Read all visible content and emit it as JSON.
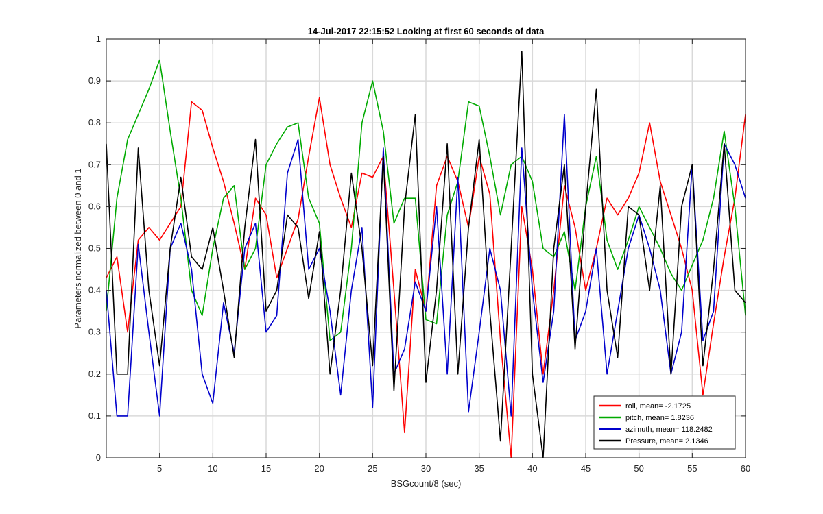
{
  "chart_data": {
    "type": "line",
    "title": "14-Jul-2017 22:15:52 Looking at first 60 seconds of data",
    "xlabel": "BSGcount/8 (sec)",
    "ylabel": "Parameters normalized between 0 and 1",
    "xlim": [
      0,
      60
    ],
    "ylim": [
      0,
      1
    ],
    "xticks": [
      5,
      10,
      15,
      20,
      25,
      30,
      35,
      40,
      45,
      50,
      55,
      60
    ],
    "yticks": [
      0,
      0.1,
      0.2,
      0.3,
      0.4,
      0.5,
      0.6,
      0.7,
      0.8,
      0.9,
      1
    ],
    "grid": true,
    "legend_position": "bottom-right",
    "series": [
      {
        "name": "roll, mean= -2.1725",
        "color": "#ff0000",
        "x": [
          0,
          1,
          2,
          3,
          4,
          5,
          6,
          7,
          8,
          9,
          10,
          11,
          12,
          13,
          14,
          15,
          16,
          17,
          18,
          19,
          20,
          21,
          22,
          23,
          24,
          25,
          26,
          27,
          28,
          29,
          30,
          31,
          32,
          33,
          34,
          35,
          36,
          37,
          38,
          39,
          40,
          41,
          42,
          43,
          44,
          45,
          46,
          47,
          48,
          49,
          50,
          51,
          52,
          53,
          54,
          55,
          56,
          57,
          58,
          59,
          60
        ],
        "y": [
          0.43,
          0.48,
          0.3,
          0.52,
          0.55,
          0.52,
          0.56,
          0.6,
          0.85,
          0.83,
          0.74,
          0.66,
          0.56,
          0.45,
          0.62,
          0.58,
          0.43,
          0.5,
          0.57,
          0.72,
          0.86,
          0.7,
          0.62,
          0.55,
          0.68,
          0.67,
          0.72,
          0.4,
          0.06,
          0.45,
          0.35,
          0.65,
          0.72,
          0.66,
          0.55,
          0.72,
          0.63,
          0.28,
          0.0,
          0.6,
          0.45,
          0.2,
          0.4,
          0.65,
          0.55,
          0.4,
          0.5,
          0.62,
          0.58,
          0.62,
          0.68,
          0.8,
          0.66,
          0.58,
          0.5,
          0.4,
          0.15,
          0.32,
          0.48,
          0.62,
          0.82
        ]
      },
      {
        "name": "pitch, mean= 1.8236",
        "color": "#00aa00",
        "x": [
          0,
          1,
          2,
          3,
          4,
          5,
          6,
          7,
          8,
          9,
          10,
          11,
          12,
          13,
          14,
          15,
          16,
          17,
          18,
          19,
          20,
          21,
          22,
          23,
          24,
          25,
          26,
          27,
          28,
          29,
          30,
          31,
          32,
          33,
          34,
          35,
          36,
          37,
          38,
          39,
          40,
          41,
          42,
          43,
          44,
          45,
          46,
          47,
          48,
          49,
          50,
          51,
          52,
          53,
          54,
          55,
          56,
          57,
          58,
          59,
          60
        ],
        "y": [
          0.35,
          0.62,
          0.76,
          0.82,
          0.88,
          0.95,
          0.78,
          0.62,
          0.4,
          0.34,
          0.5,
          0.62,
          0.65,
          0.45,
          0.5,
          0.7,
          0.75,
          0.79,
          0.8,
          0.62,
          0.56,
          0.28,
          0.3,
          0.5,
          0.8,
          0.9,
          0.78,
          0.56,
          0.62,
          0.62,
          0.33,
          0.32,
          0.58,
          0.66,
          0.85,
          0.84,
          0.72,
          0.58,
          0.7,
          0.72,
          0.66,
          0.5,
          0.48,
          0.54,
          0.4,
          0.6,
          0.72,
          0.52,
          0.45,
          0.52,
          0.6,
          0.55,
          0.5,
          0.44,
          0.4,
          0.46,
          0.52,
          0.62,
          0.78,
          0.6,
          0.34
        ]
      },
      {
        "name": "azimuth, mean= 118.2482",
        "color": "#0000cc",
        "x": [
          0,
          1,
          2,
          3,
          4,
          5,
          6,
          7,
          8,
          9,
          10,
          11,
          12,
          13,
          14,
          15,
          16,
          17,
          18,
          19,
          20,
          21,
          22,
          23,
          24,
          25,
          26,
          27,
          28,
          29,
          30,
          31,
          32,
          33,
          34,
          35,
          36,
          37,
          38,
          39,
          40,
          41,
          42,
          43,
          44,
          45,
          46,
          47,
          48,
          49,
          50,
          51,
          52,
          53,
          54,
          55,
          56,
          57,
          58,
          59,
          60
        ],
        "y": [
          0.4,
          0.1,
          0.1,
          0.51,
          0.3,
          0.1,
          0.5,
          0.56,
          0.45,
          0.2,
          0.13,
          0.37,
          0.25,
          0.5,
          0.56,
          0.3,
          0.34,
          0.68,
          0.76,
          0.45,
          0.5,
          0.35,
          0.15,
          0.4,
          0.55,
          0.12,
          0.74,
          0.2,
          0.26,
          0.42,
          0.35,
          0.6,
          0.2,
          0.67,
          0.11,
          0.3,
          0.5,
          0.4,
          0.1,
          0.74,
          0.4,
          0.18,
          0.35,
          0.82,
          0.28,
          0.35,
          0.5,
          0.2,
          0.35,
          0.5,
          0.58,
          0.5,
          0.4,
          0.2,
          0.3,
          0.7,
          0.28,
          0.35,
          0.75,
          0.7,
          0.62
        ]
      },
      {
        "name": "Pressure, mean= 2.1346",
        "color": "#000000",
        "x": [
          0,
          1,
          2,
          3,
          4,
          5,
          6,
          7,
          8,
          9,
          10,
          11,
          12,
          13,
          14,
          15,
          16,
          17,
          18,
          19,
          20,
          21,
          22,
          23,
          24,
          25,
          26,
          27,
          28,
          29,
          30,
          31,
          32,
          33,
          34,
          35,
          36,
          37,
          38,
          39,
          40,
          41,
          42,
          43,
          44,
          45,
          46,
          47,
          48,
          49,
          50,
          51,
          52,
          53,
          54,
          55,
          56,
          57,
          58,
          59,
          60
        ],
        "y": [
          0.75,
          0.2,
          0.2,
          0.74,
          0.4,
          0.22,
          0.5,
          0.67,
          0.48,
          0.45,
          0.55,
          0.4,
          0.24,
          0.55,
          0.76,
          0.35,
          0.4,
          0.58,
          0.55,
          0.38,
          0.54,
          0.2,
          0.4,
          0.68,
          0.5,
          0.22,
          0.72,
          0.16,
          0.6,
          0.82,
          0.18,
          0.4,
          0.75,
          0.2,
          0.55,
          0.76,
          0.35,
          0.04,
          0.5,
          0.97,
          0.2,
          0.0,
          0.5,
          0.7,
          0.26,
          0.6,
          0.88,
          0.4,
          0.24,
          0.6,
          0.58,
          0.4,
          0.65,
          0.2,
          0.6,
          0.7,
          0.22,
          0.45,
          0.75,
          0.4,
          0.37
        ]
      }
    ]
  }
}
